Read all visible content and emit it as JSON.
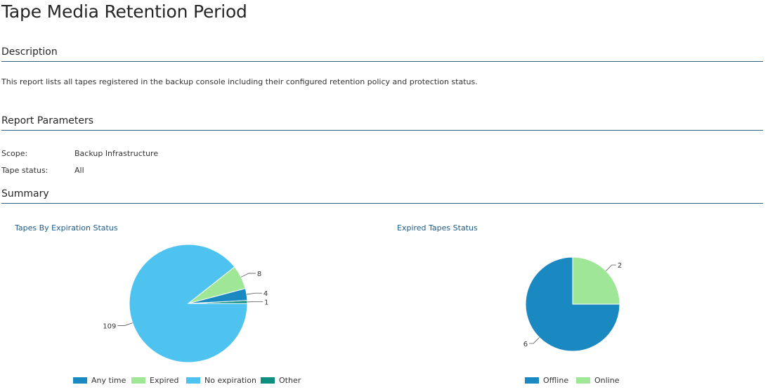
{
  "page": {
    "title": "Tape Media Retention Period"
  },
  "description": {
    "heading": "Description",
    "text": "This report lists all tapes registered in the backup console including their configured retention policy and protection status."
  },
  "parameters": {
    "heading": "Report Parameters",
    "items": [
      {
        "label": "Scope:",
        "value": "Backup Infrastructure"
      },
      {
        "label": "Tape status:",
        "value": "All"
      }
    ]
  },
  "summary": {
    "heading": "Summary"
  },
  "colors": {
    "any_time": "#1a88c1",
    "expired": "#9fe796",
    "no_expiration": "#4fc3ef",
    "other": "#0c8f7f",
    "offline": "#1a88c1",
    "online": "#9fe796",
    "section_rule": "#2e5f7c",
    "chart_title": "#1d5b86"
  },
  "chart_data": [
    {
      "type": "pie",
      "title": "Tapes By Expiration Status",
      "categories": [
        "Any time",
        "Expired",
        "No expiration",
        "Other"
      ],
      "values": [
        4,
        8,
        109,
        1
      ],
      "colors": [
        "#1a88c1",
        "#9fe796",
        "#4fc3ef",
        "#0c8f7f"
      ],
      "slice_order": [
        "Other",
        "Any time",
        "Expired",
        "No expiration"
      ],
      "legend_position": "bottom"
    },
    {
      "type": "pie",
      "title": "Expired Tapes Status",
      "categories": [
        "Offline",
        "Online"
      ],
      "values": [
        6,
        2
      ],
      "colors": [
        "#1a88c1",
        "#9fe796"
      ],
      "slice_order": [
        "Online",
        "Offline"
      ],
      "legend_position": "bottom"
    }
  ]
}
